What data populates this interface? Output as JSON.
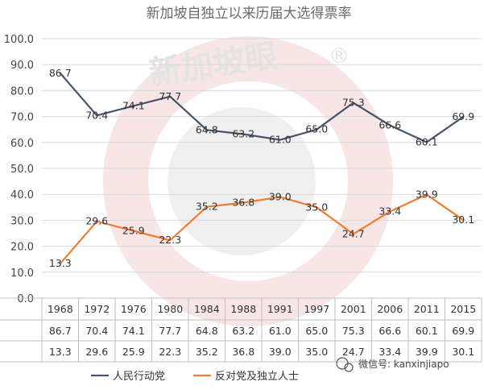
{
  "chart_data": {
    "type": "line",
    "title": "新加坡自独立以来历届大选得票率",
    "x": [
      "1968",
      "1972",
      "1976",
      "1980",
      "1984",
      "1988",
      "1991",
      "1997",
      "2001",
      "2006",
      "2011",
      "2015"
    ],
    "series": [
      {
        "name": "人民行动党",
        "color": "#44546a",
        "values": [
          86.7,
          70.4,
          74.1,
          77.7,
          64.8,
          63.2,
          61.0,
          65.0,
          75.3,
          66.6,
          60.1,
          69.9
        ]
      },
      {
        "name": "反对党及独立人士",
        "color": "#ed7d31",
        "values": [
          13.3,
          29.6,
          25.9,
          22.3,
          35.2,
          36.8,
          39.0,
          35.0,
          24.7,
          33.4,
          39.9,
          30.1
        ]
      }
    ],
    "ylim": [
      0,
      100
    ],
    "yticks": [
      "0.0",
      "10.0",
      "20.0",
      "30.0",
      "40.0",
      "50.0",
      "60.0",
      "70.0",
      "80.0",
      "90.0",
      "100.0"
    ],
    "grid": "horizontal",
    "data_table": true,
    "legend_position": "bottom"
  },
  "watermark": {
    "logo_text": "新加坡眼",
    "registered_mark": "®",
    "wechat_text": "微信号: kanxinjiapo"
  }
}
